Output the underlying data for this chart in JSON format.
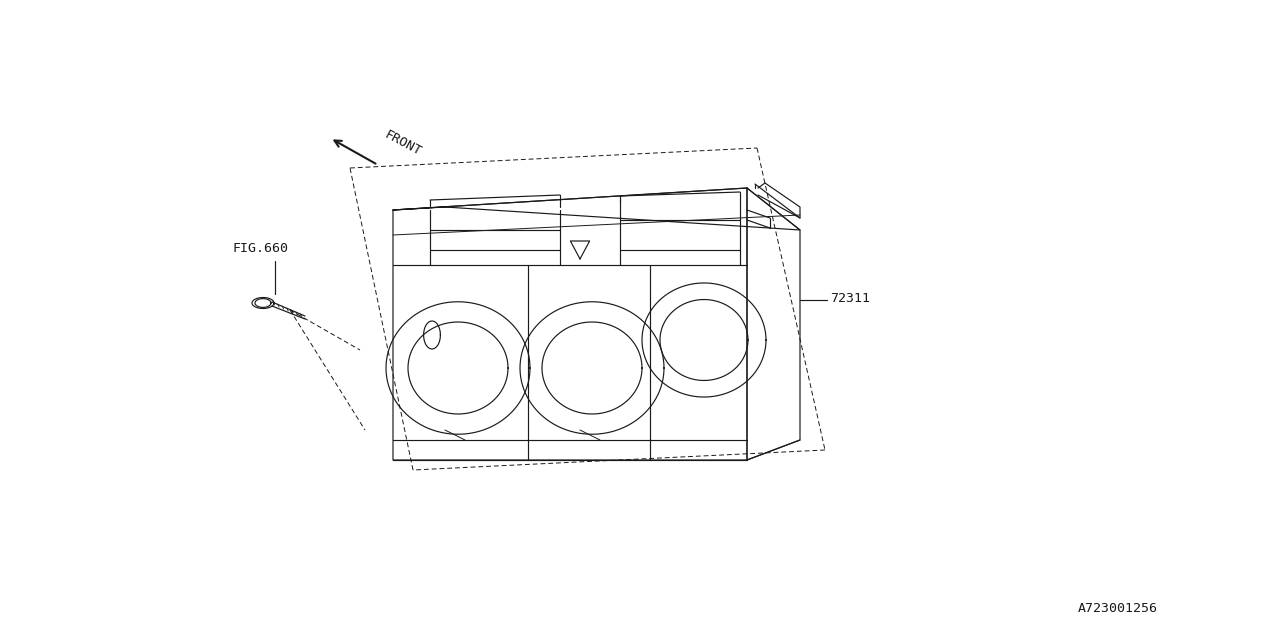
{
  "bg_color": "#ffffff",
  "line_color": "#1a1a1a",
  "front_label": "FRONT",
  "fig_label": "FIG.660",
  "part_number": "72311",
  "catalog_number": "A723001256"
}
